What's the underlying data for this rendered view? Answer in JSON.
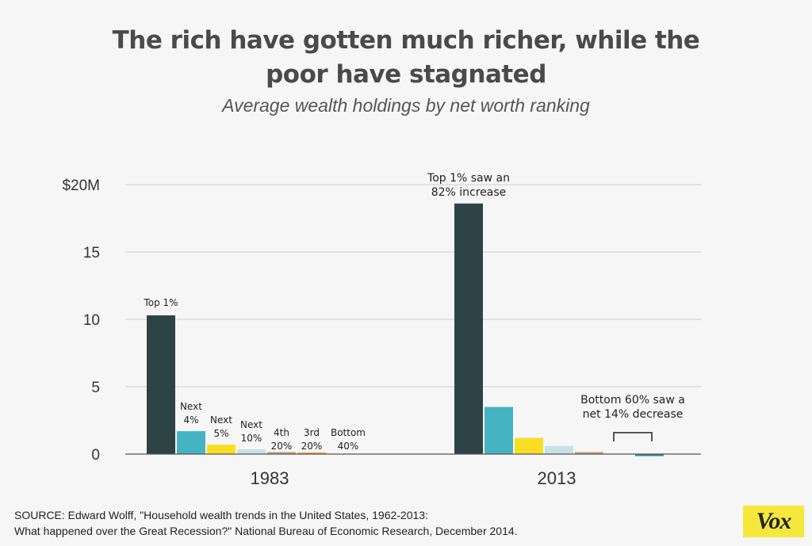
{
  "title_lines": [
    "The rich have gotten much richer, while the",
    "poor have stagnated"
  ],
  "subtitle": "Average wealth holdings by net worth ranking",
  "chart_data": {
    "type": "bar",
    "title": "The rich have gotten much richer, while the poor have stagnated",
    "subtitle": "Average wealth holdings by net worth ranking",
    "xlabel": "",
    "ylabel": "",
    "y_unit": "millions of dollars",
    "ylim": [
      0,
      20
    ],
    "yticks": [
      {
        "value": 0,
        "label": "0"
      },
      {
        "value": 5,
        "label": "5"
      },
      {
        "value": 10,
        "label": "10"
      },
      {
        "value": 15,
        "label": "15"
      },
      {
        "value": 20,
        "label": "$20M"
      }
    ],
    "grid": true,
    "categories": [
      "1983",
      "2013"
    ],
    "series": [
      {
        "name": "Top 1%",
        "color": "#2e4346",
        "values": [
          10.3,
          18.6
        ]
      },
      {
        "name": "Next 4%",
        "color": "#46b3c3",
        "values": [
          1.7,
          3.5
        ]
      },
      {
        "name": "Next 5%",
        "color": "#f9de23",
        "values": [
          0.7,
          1.2
        ]
      },
      {
        "name": "Next 10%",
        "color": "#c6e2e6",
        "values": [
          0.35,
          0.6
        ]
      },
      {
        "name": "4th 20%",
        "color": "#c8a077",
        "values": [
          0.15,
          0.15
        ]
      },
      {
        "name": "3rd 20%",
        "color": "#f0a04b",
        "values": [
          0.12,
          0.0
        ]
      },
      {
        "name": "Bottom 40%",
        "color": "#2b8c96",
        "values": [
          0.0,
          -0.15
        ]
      }
    ],
    "bar_labels_1983": [
      [
        "Top 1%"
      ],
      [
        "Next",
        "4%"
      ],
      [
        "Next",
        "5%"
      ],
      [
        "Next",
        "10%"
      ],
      [
        "4th",
        "20%"
      ],
      [
        "3rd",
        "20%"
      ],
      [
        "Bottom",
        "40%"
      ]
    ],
    "annotations": {
      "top_2013": [
        "Top 1% saw an",
        "82% increase"
      ],
      "bottom_2013": [
        "Bottom 60% saw a",
        "net 14% decrease"
      ]
    }
  },
  "source_lines": [
    "SOURCE: Edward Wolff, \"Household wealth trends in the United States, 1962-2013:",
    "What happened over the Great Recession?\" National Bureau of Economic Research, December 2014."
  ],
  "logo_text": "Vox"
}
